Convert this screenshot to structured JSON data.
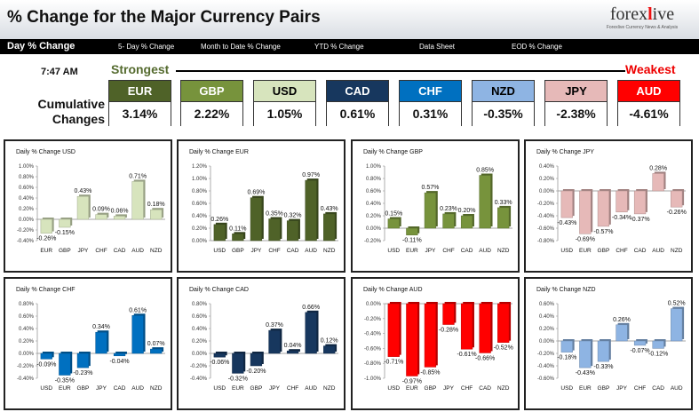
{
  "header": {
    "title": "% Change for the Major Currency Pairs",
    "logo_brand": "forexlive",
    "logo_tagline": "Forexlive Currency News & Analysis"
  },
  "nav": {
    "items": [
      "Day % Change",
      "5- Day % Change",
      "Month to Date % Change",
      "YTD % Change",
      "Data Sheet",
      "EOD % Change"
    ]
  },
  "summary": {
    "time": "7:47 AM",
    "strongest_label": "Strongest",
    "weakest_label": "Weakest",
    "cumulative_label": "Cumulative Changes",
    "currencies": [
      {
        "code": "EUR",
        "value": "3.14%",
        "bg": "#4f6228",
        "fg": "#ffffff"
      },
      {
        "code": "GBP",
        "value": "2.22%",
        "bg": "#77933c",
        "fg": "#ffffff"
      },
      {
        "code": "USD",
        "value": "1.05%",
        "bg": "#d7e4bd",
        "fg": "#000000"
      },
      {
        "code": "CAD",
        "value": "0.61%",
        "bg": "#17375e",
        "fg": "#ffffff"
      },
      {
        "code": "CHF",
        "value": "0.31%",
        "bg": "#0070c0",
        "fg": "#ffffff"
      },
      {
        "code": "NZD",
        "value": "-0.35%",
        "bg": "#8eb4e3",
        "fg": "#000000"
      },
      {
        "code": "JPY",
        "value": "-2.38%",
        "bg": "#e6b9b8",
        "fg": "#000000"
      },
      {
        "code": "AUD",
        "value": "-4.61%",
        "bg": "#ff0000",
        "fg": "#ffffff"
      }
    ]
  },
  "chart_data": [
    {
      "type": "bar",
      "title": "Daily % Change USD",
      "categories": [
        "EUR",
        "GBP",
        "JPY",
        "CHF",
        "CAD",
        "AUD",
        "NZD"
      ],
      "values": [
        -0.26,
        -0.15,
        0.43,
        0.09,
        0.06,
        0.71,
        0.18
      ],
      "labels": [
        "-0.26%",
        "-0.15%",
        "0.43%",
        "0.09%",
        "0.06%",
        "0.71%",
        "0.18%"
      ],
      "ylim": [
        -0.4,
        1.0
      ],
      "yticks": [
        "-0.40%",
        "-0.20%",
        "0.00%",
        "0.20%",
        "0.40%",
        "0.60%",
        "0.80%",
        "1.00%"
      ],
      "color": "#d7e4bd"
    },
    {
      "type": "bar",
      "title": "Daily % Change EUR",
      "categories": [
        "USD",
        "GBP",
        "JPY",
        "CHF",
        "CAD",
        "AUD",
        "NZD"
      ],
      "values": [
        0.26,
        0.11,
        0.69,
        0.35,
        0.32,
        0.97,
        0.43
      ],
      "labels": [
        "0.26%",
        "0.11%",
        "0.69%",
        "0.35%",
        "0.32%",
        "0.97%",
        "0.43%"
      ],
      "ylim": [
        0.0,
        1.2
      ],
      "yticks": [
        "0.00%",
        "0.20%",
        "0.40%",
        "0.60%",
        "0.80%",
        "1.00%",
        "1.20%"
      ],
      "color": "#4f6228"
    },
    {
      "type": "bar",
      "title": "Daily % Change GBP",
      "categories": [
        "USD",
        "EUR",
        "JPY",
        "CHF",
        "CAD",
        "AUD",
        "NZD"
      ],
      "values": [
        0.15,
        -0.11,
        0.57,
        0.23,
        0.2,
        0.85,
        0.33
      ],
      "labels": [
        "0.15%",
        "-0.11%",
        "0.57%",
        "0.23%",
        "0.20%",
        "0.85%",
        "0.33%"
      ],
      "ylim": [
        -0.2,
        1.0
      ],
      "yticks": [
        "-0.20%",
        "0.00%",
        "0.20%",
        "0.40%",
        "0.60%",
        "0.80%",
        "1.00%"
      ],
      "color": "#77933c"
    },
    {
      "type": "bar",
      "title": "Daily % Change JPY",
      "categories": [
        "USD",
        "EUR",
        "GBP",
        "CHF",
        "CAD",
        "AUD",
        "NZD"
      ],
      "values": [
        -0.43,
        -0.69,
        -0.57,
        -0.34,
        -0.37,
        0.28,
        -0.26
      ],
      "labels": [
        "-0.43%",
        "-0.69%",
        "-0.57%",
        "-0.34%",
        "-0.37%",
        "0.28%",
        "-0.26%"
      ],
      "ylim": [
        -0.8,
        0.4
      ],
      "yticks": [
        "-0.80%",
        "-0.60%",
        "-0.40%",
        "-0.20%",
        "0.00%",
        "0.20%",
        "0.40%"
      ],
      "color": "#e6b9b8"
    },
    {
      "type": "bar",
      "title": "Daily % Change CHF",
      "categories": [
        "USD",
        "EUR",
        "GBP",
        "JPY",
        "CAD",
        "AUD",
        "NZD"
      ],
      "values": [
        -0.09,
        -0.35,
        -0.23,
        0.34,
        -0.04,
        0.61,
        0.07
      ],
      "labels": [
        "-0.09%",
        "-0.35%",
        "-0.23%",
        "0.34%",
        "-0.04%",
        "0.61%",
        "0.07%"
      ],
      "ylim": [
        -0.4,
        0.8
      ],
      "yticks": [
        "-0.40%",
        "-0.20%",
        "0.00%",
        "0.20%",
        "0.40%",
        "0.60%",
        "0.80%"
      ],
      "color": "#0070c0"
    },
    {
      "type": "bar",
      "title": "Daily % Change CAD",
      "categories": [
        "USD",
        "EUR",
        "GBP",
        "JPY",
        "CHF",
        "AUD",
        "NZD"
      ],
      "values": [
        -0.06,
        -0.32,
        -0.2,
        0.37,
        0.04,
        0.66,
        0.12
      ],
      "labels": [
        "-0.06%",
        "-0.32%",
        "-0.20%",
        "0.37%",
        "0.04%",
        "0.66%",
        "0.12%"
      ],
      "ylim": [
        -0.4,
        0.8
      ],
      "yticks": [
        "-0.40%",
        "-0.20%",
        "0.00%",
        "0.20%",
        "0.40%",
        "0.60%",
        "0.80%"
      ],
      "color": "#17375e"
    },
    {
      "type": "bar",
      "title": "Daily % Change AUD",
      "categories": [
        "USD",
        "EUR",
        "GBP",
        "JPY",
        "CHF",
        "CAD",
        "NZD"
      ],
      "values": [
        -0.71,
        -0.97,
        -0.85,
        -0.28,
        -0.61,
        -0.66,
        -0.52
      ],
      "labels": [
        "-0.71%",
        "-0.97%",
        "-0.85%",
        "-0.28%",
        "-0.61%",
        "-0.66%",
        "-0.52%"
      ],
      "ylim": [
        -1.0,
        0.0
      ],
      "yticks": [
        "-1.00%",
        "-0.80%",
        "-0.60%",
        "-0.40%",
        "-0.20%",
        "0.00%"
      ],
      "color": "#ff0000"
    },
    {
      "type": "bar",
      "title": "Daily % Change NZD",
      "categories": [
        "USD",
        "EUR",
        "GBP",
        "JPY",
        "CHF",
        "CAD",
        "AUD"
      ],
      "values": [
        -0.18,
        -0.43,
        -0.33,
        0.26,
        -0.07,
        -0.12,
        0.52
      ],
      "labels": [
        "-0.18%",
        "-0.43%",
        "-0.33%",
        "0.26%",
        "-0.07%",
        "-0.12%",
        "0.52%"
      ],
      "ylim": [
        -0.6,
        0.6
      ],
      "yticks": [
        "-0.60%",
        "-0.40%",
        "-0.20%",
        "0.00%",
        "0.20%",
        "0.40%",
        "0.60%"
      ],
      "color": "#8eb4e3"
    }
  ]
}
